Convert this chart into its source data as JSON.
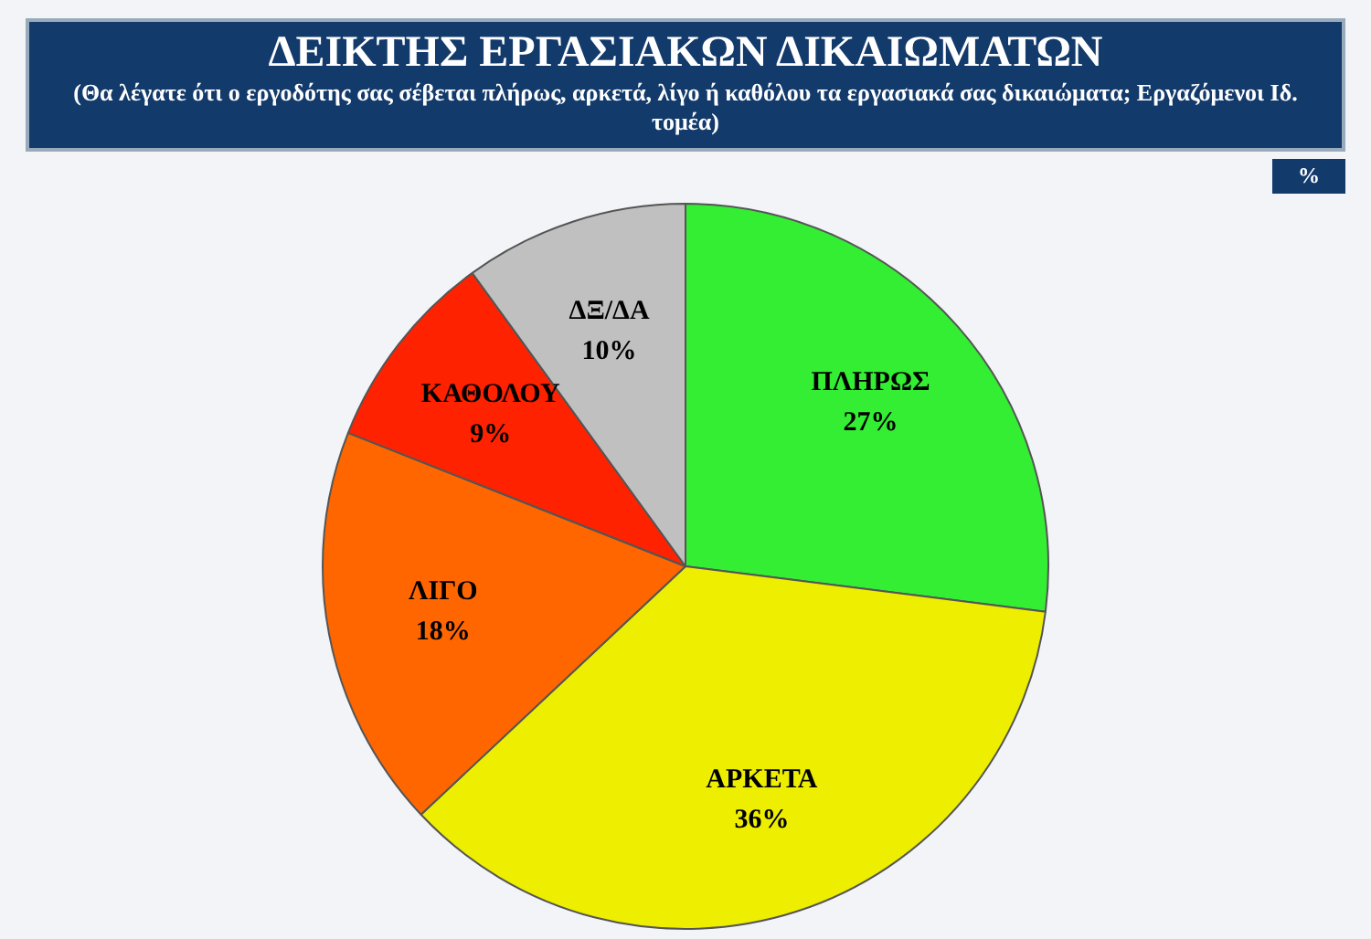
{
  "chart_data": {
    "type": "pie",
    "title": "ΔΕΙΚΤΗΣ ΕΡΓΑΣΙΑΚΩΝ ΔΙΚΑΙΩΜΑΤΩΝ",
    "subtitle": "(Θα λέγατε ότι ο εργοδότης σας σέβεται πλήρως, αρκετά, λίγο ή καθόλου τα εργασιακά σας δικαιώματα; Εργαζόμενοι Ιδ. τομέα)",
    "annotations": [
      "%"
    ],
    "categories": [
      "ΠΛΗΡΩΣ",
      "ΑΡΚΕΤΑ",
      "ΛΙΓΟ",
      "ΚΑΘΟΛΟΥ",
      "ΔΞ/ΔΑ"
    ],
    "values": [
      27,
      36,
      18,
      9,
      10
    ],
    "value_labels": [
      "27%",
      "36%",
      "18%",
      "9%",
      "10%"
    ],
    "colors": [
      "#33ee33",
      "#eeee00",
      "#ff6600",
      "#ff2200",
      "#c0c0c0"
    ],
    "legend": false
  }
}
